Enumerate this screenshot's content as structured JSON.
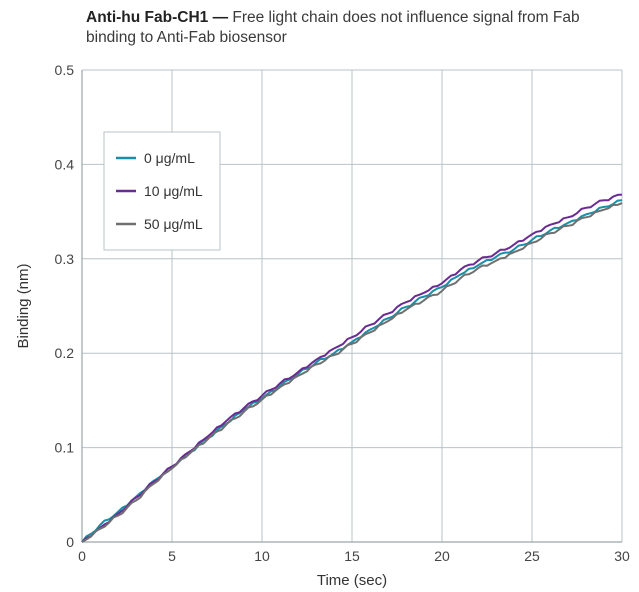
{
  "title": {
    "bold": "Anti-hu Fab-CH1 —",
    "rest": " Free light chain does not influence signal from Fab binding to Anti-Fab biosensor"
  },
  "chart_data": {
    "type": "line",
    "xlabel": "Time (sec)",
    "ylabel": "Binding (nm)",
    "xlim": [
      0,
      30
    ],
    "ylim": [
      0,
      0.5
    ],
    "xticks": [
      "0",
      "5",
      "10",
      "15",
      "20",
      "25",
      "30"
    ],
    "yticks": [
      "0",
      "0.1",
      "0.2",
      "0.3",
      "0.4",
      "0.5"
    ],
    "grid": true,
    "legend_position": "upper-left",
    "x": [
      0,
      1,
      2,
      3,
      4,
      5,
      6,
      7,
      8,
      9,
      10,
      11,
      12,
      13,
      14,
      15,
      16,
      17,
      18,
      19,
      20,
      21,
      22,
      23,
      24,
      25,
      26,
      27,
      28,
      29,
      30
    ],
    "series": [
      {
        "name": "0 μg/mL",
        "color": "#1a8fa8",
        "values": [
          0.0,
          0.018,
          0.032,
          0.048,
          0.065,
          0.08,
          0.095,
          0.11,
          0.125,
          0.14,
          0.152,
          0.165,
          0.178,
          0.19,
          0.2,
          0.212,
          0.225,
          0.237,
          0.249,
          0.26,
          0.27,
          0.283,
          0.293,
          0.302,
          0.31,
          0.32,
          0.33,
          0.338,
          0.347,
          0.355,
          0.362
        ]
      },
      {
        "name": "10 μg/mL",
        "color": "#6a2c91",
        "values": [
          0.0,
          0.015,
          0.03,
          0.047,
          0.064,
          0.08,
          0.096,
          0.112,
          0.128,
          0.142,
          0.155,
          0.168,
          0.18,
          0.193,
          0.205,
          0.217,
          0.23,
          0.242,
          0.254,
          0.264,
          0.274,
          0.288,
          0.298,
          0.306,
          0.315,
          0.326,
          0.336,
          0.344,
          0.354,
          0.362,
          0.368
        ]
      },
      {
        "name": "50 μg/mL",
        "color": "#707070",
        "values": [
          0.0,
          0.014,
          0.028,
          0.044,
          0.062,
          0.078,
          0.094,
          0.109,
          0.124,
          0.138,
          0.151,
          0.164,
          0.176,
          0.188,
          0.198,
          0.21,
          0.222,
          0.234,
          0.246,
          0.256,
          0.266,
          0.279,
          0.29,
          0.298,
          0.307,
          0.317,
          0.327,
          0.335,
          0.344,
          0.352,
          0.359
        ]
      }
    ]
  }
}
